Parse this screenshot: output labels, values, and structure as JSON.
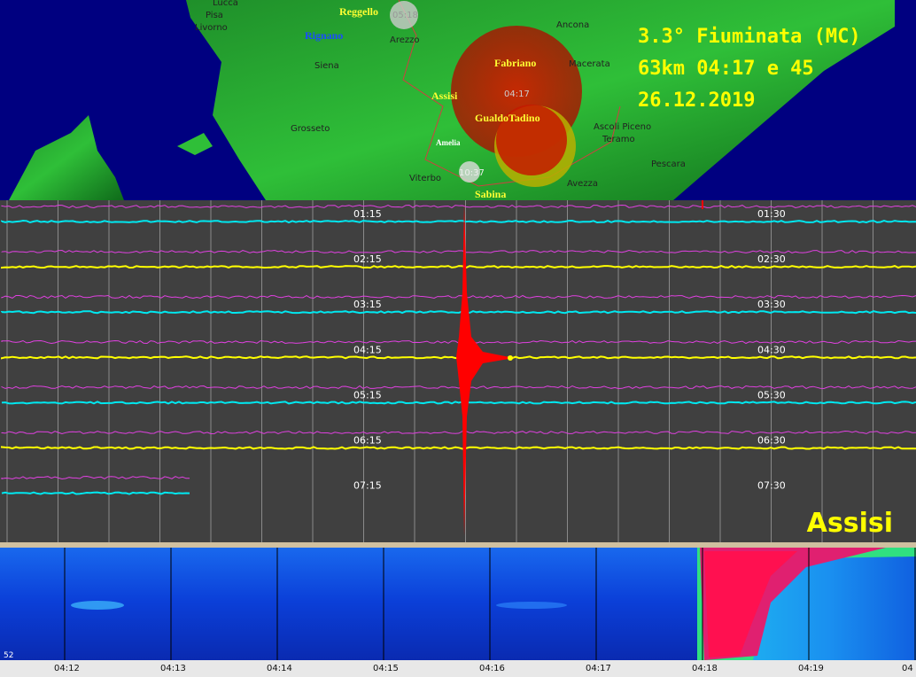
{
  "map": {
    "places": [
      "Lucca",
      "Pisa",
      "Livorno",
      "Siena",
      "Arezzo",
      "Ancona",
      "Macerata",
      "Grosseto",
      "Ascoli Piceno",
      "Teramo",
      "Pescara",
      "Viterbo",
      "Avezza"
    ],
    "stations": [
      "Reggello",
      "Rignano",
      "Fabriano",
      "Assisi",
      "GualdoTadino",
      "Amelia",
      "Sabina"
    ],
    "markers": [
      "05:18",
      "04:17",
      "10:37"
    ],
    "event": {
      "line1": "3.3° Fiuminata (MC)",
      "line2": "63km 04:17 e 45",
      "line3": "26.12.2019"
    }
  },
  "helicorder": {
    "left_times": [
      "01:15",
      "02:15",
      "03:15",
      "04:15",
      "05:15",
      "06:15",
      "07:15"
    ],
    "right_times": [
      "01:30",
      "02:30",
      "03:30",
      "04:30",
      "05:30",
      "06:30",
      "07:30"
    ],
    "station": "Assisi"
  },
  "spectrogram": {
    "times": [
      "04:12",
      "04:13",
      "04:14",
      "04:15",
      "04:16",
      "04:17",
      "04:18",
      "04:19",
      "04"
    ],
    "scale_label": "52"
  }
}
